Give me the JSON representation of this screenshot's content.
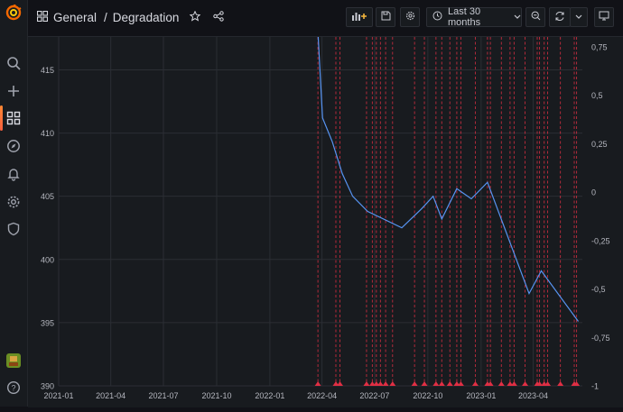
{
  "header": {
    "folder": "General",
    "separator": "/",
    "title": "Degradation",
    "time_range": "Last 30 months"
  },
  "icons": {
    "logo": "grafana-logo-icon",
    "search": "search-icon",
    "create": "plus-icon",
    "dashboards": "dashboards-icon",
    "explore": "compass-icon",
    "alerting": "bell-icon",
    "config": "gear-icon",
    "server_admin": "shield-icon",
    "help": "help-icon"
  },
  "colors": {
    "series": "#5794f2",
    "annotation": "#e02f44",
    "accent": "#f55f3e"
  },
  "chart_data": {
    "type": "line",
    "title": "",
    "y_left": {
      "ticks": [
        "390",
        "395",
        "400",
        "405",
        "410",
        "415"
      ],
      "range": [
        390,
        417.6
      ]
    },
    "y_right": {
      "ticks": [
        "-1",
        "-0,75",
        "-0,5",
        "-0,25",
        "0",
        "0,25",
        "0,5",
        "0,75"
      ],
      "range": [
        -1,
        0.8
      ]
    },
    "x_ticks": [
      "2021-01",
      "2021-04",
      "2021-07",
      "2021-10",
      "2022-01",
      "2022-04",
      "2022-07",
      "2022-10",
      "2023-01",
      "2023-04"
    ],
    "x_range": [
      "2021-01-01",
      "2023-06-25"
    ],
    "series": [
      {
        "points": [
          [
            "2022-03-25",
            418.0
          ],
          [
            "2022-04-02",
            411.2
          ],
          [
            "2022-04-19",
            409.3
          ],
          [
            "2022-05-06",
            406.8
          ],
          [
            "2022-05-24",
            405.0
          ],
          [
            "2022-06-19",
            403.8
          ],
          [
            "2022-08-17",
            402.5
          ],
          [
            "2022-09-20",
            404.0
          ],
          [
            "2022-10-10",
            405.0
          ],
          [
            "2022-10-25",
            403.2
          ],
          [
            "2022-11-20",
            405.6
          ],
          [
            "2022-12-15",
            404.8
          ],
          [
            "2023-01-12",
            406.1
          ],
          [
            "2023-03-25",
            397.3
          ],
          [
            "2023-04-15",
            399.1
          ],
          [
            "2023-06-18",
            395.1
          ]
        ]
      }
    ],
    "annotations": [
      "2022-03-25",
      "2022-04-25",
      "2022-05-02",
      "2022-06-17",
      "2022-06-27",
      "2022-07-04",
      "2022-07-11",
      "2022-07-20",
      "2022-08-01",
      "2022-09-08",
      "2022-09-25",
      "2022-10-15",
      "2022-10-25",
      "2022-11-08",
      "2022-11-20",
      "2022-11-27",
      "2022-12-22",
      "2023-01-12",
      "2023-01-17",
      "2023-02-05",
      "2023-02-20",
      "2023-02-27",
      "2023-03-18",
      "2023-04-08",
      "2023-04-12",
      "2023-04-20",
      "2023-04-26",
      "2023-05-18",
      "2023-06-11",
      "2023-06-15"
    ]
  }
}
